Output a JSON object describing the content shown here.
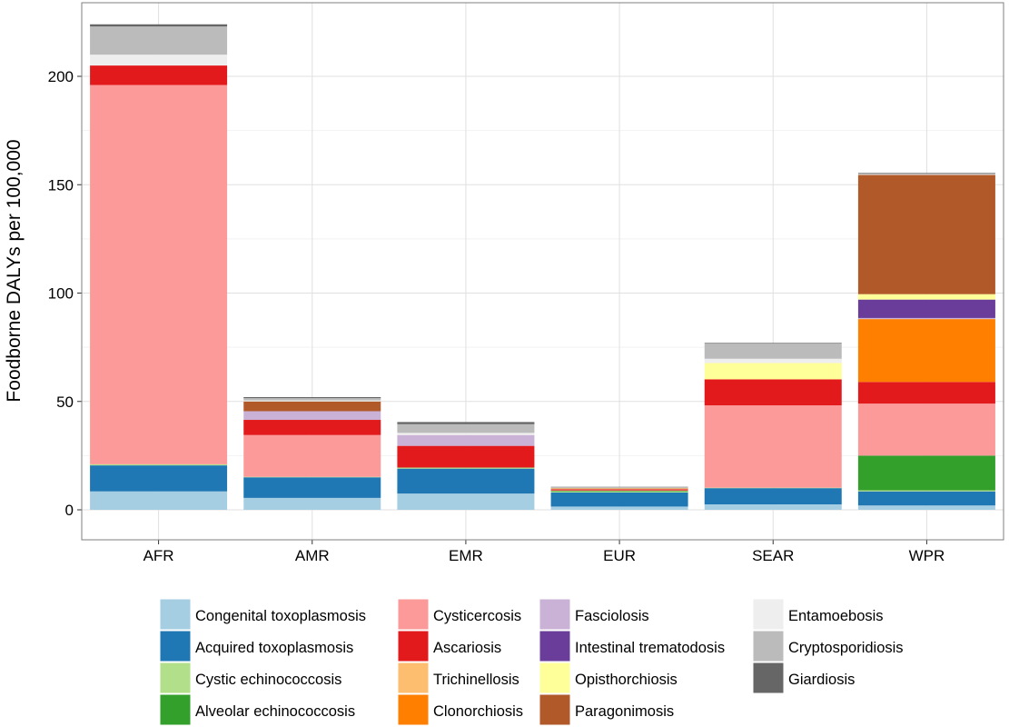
{
  "chart_data": {
    "type": "bar",
    "stacked": true,
    "title": "",
    "xlabel": "",
    "ylabel": "Foodborne DALYs per 100,000",
    "ylim": [
      0,
      225
    ],
    "yticks": [
      0,
      50,
      100,
      150,
      200
    ],
    "grid": true,
    "legend_position": "bottom",
    "categories": [
      "AFR",
      "AMR",
      "EMR",
      "EUR",
      "SEAR",
      "WPR"
    ],
    "series": [
      {
        "name": "Congenital toxoplasmosis",
        "color": "#a6cee3",
        "values": [
          8.5,
          5.5,
          7.5,
          1.5,
          2.5,
          2.0
        ]
      },
      {
        "name": "Acquired toxoplasmosis",
        "color": "#1f78b4",
        "values": [
          12.0,
          9.5,
          11.5,
          6.5,
          7.5,
          6.5
        ]
      },
      {
        "name": "Cystic echinococcosis",
        "color": "#b2df8a",
        "values": [
          0.5,
          0.2,
          0.5,
          0.5,
          0.2,
          0.5
        ]
      },
      {
        "name": "Alveolar echinococcosis",
        "color": "#33a02c",
        "values": [
          0.0,
          0.0,
          0.0,
          0.3,
          0.0,
          16.0
        ]
      },
      {
        "name": "Cysticercosis",
        "color": "#fb9a99",
        "values": [
          175.0,
          19.3,
          0.0,
          0.2,
          38.0,
          24.0
        ]
      },
      {
        "name": "Ascariosis",
        "color": "#e31a1c",
        "values": [
          9.0,
          7.0,
          10.0,
          0.5,
          12.0,
          10.0
        ]
      },
      {
        "name": "Trichinellosis",
        "color": "#fdbf6f",
        "values": [
          0.0,
          0.0,
          0.0,
          0.2,
          0.0,
          0.0
        ]
      },
      {
        "name": "Clonorchiosis",
        "color": "#ff7f00",
        "values": [
          0.0,
          0.0,
          0.0,
          0.0,
          0.0,
          29.0
        ]
      },
      {
        "name": "Fasciolosis",
        "color": "#cab2d6",
        "values": [
          0.0,
          4.0,
          5.0,
          0.1,
          0.0,
          0.5
        ]
      },
      {
        "name": "Intestinal trematodosis",
        "color": "#6a3d9a",
        "values": [
          0.0,
          0.0,
          0.0,
          0.0,
          0.0,
          8.5
        ]
      },
      {
        "name": "Opisthorchiosis",
        "color": "#ffff99",
        "values": [
          0.0,
          0.0,
          0.0,
          0.1,
          7.5,
          2.5
        ]
      },
      {
        "name": "Paragonimosis",
        "color": "#b15928",
        "values": [
          0.0,
          4.5,
          0.0,
          0.3,
          0.0,
          55.0
        ]
      },
      {
        "name": "Entamoebosis",
        "color": "#eeeeee",
        "values": [
          5.0,
          0.5,
          1.0,
          0.1,
          2.0,
          0.2
        ]
      },
      {
        "name": "Cryptosporidiosis",
        "color": "#bbbbbb",
        "values": [
          13.0,
          1.0,
          4.0,
          0.1,
          7.0,
          0.4
        ]
      },
      {
        "name": "Giardiosis",
        "color": "#666666",
        "values": [
          1.0,
          0.5,
          1.0,
          0.2,
          0.3,
          0.3
        ]
      }
    ],
    "legend_columns": [
      [
        "Congenital toxoplasmosis",
        "Acquired toxoplasmosis",
        "Cystic echinococcosis",
        "Alveolar echinococcosis"
      ],
      [
        "Cysticercosis",
        "Ascariosis",
        "Trichinellosis",
        "Clonorchiosis"
      ],
      [
        "Fasciolosis",
        "Intestinal trematodosis",
        "Opisthorchiosis",
        "Paragonimosis"
      ],
      [
        "Entamoebosis",
        "Cryptosporidiosis",
        "Giardiosis"
      ]
    ]
  }
}
